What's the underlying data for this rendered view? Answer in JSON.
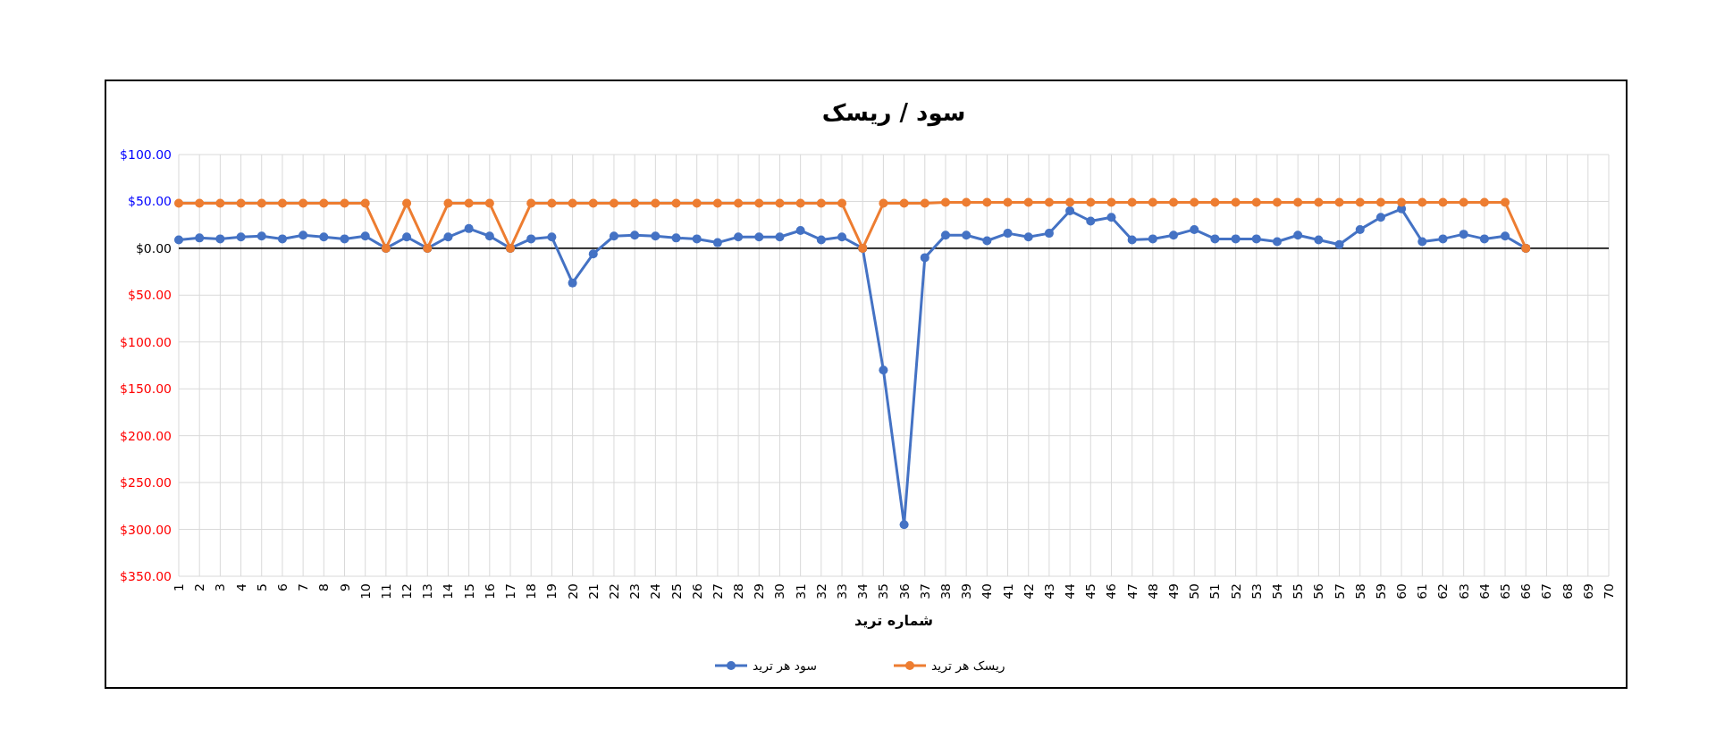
{
  "chart_data": {
    "type": "line",
    "title": "سود / ریسک",
    "xlabel": "شماره ترید",
    "categories": [
      "1",
      "2",
      "3",
      "4",
      "5",
      "6",
      "7",
      "8",
      "9",
      "10",
      "11",
      "12",
      "13",
      "14",
      "15",
      "16",
      "17",
      "18",
      "19",
      "20",
      "21",
      "22",
      "23",
      "24",
      "25",
      "26",
      "27",
      "28",
      "29",
      "30",
      "31",
      "32",
      "33",
      "34",
      "35",
      "36",
      "37",
      "38",
      "39",
      "40",
      "41",
      "42",
      "43",
      "44",
      "45",
      "46",
      "47",
      "48",
      "49",
      "50",
      "51",
      "52",
      "53",
      "54",
      "55",
      "56",
      "57",
      "58",
      "59",
      "60",
      "61",
      "62",
      "63",
      "64",
      "65",
      "66",
      "67",
      "68",
      "69",
      "70"
    ],
    "series": [
      {
        "name": "سود هر ترید",
        "color": "#4472c4",
        "values": [
          9,
          11,
          10,
          12,
          13,
          10,
          14,
          12,
          10,
          13,
          0,
          12,
          0,
          12,
          21,
          13,
          0,
          10,
          12,
          -37,
          -6,
          13,
          14,
          13,
          11,
          10,
          6,
          12,
          12,
          12,
          19,
          9,
          12,
          0,
          -130,
          -295,
          -10,
          14,
          14,
          8,
          16,
          12,
          16,
          40,
          29,
          33,
          9,
          10,
          14,
          20,
          10,
          10,
          10,
          7,
          14,
          9,
          4,
          20,
          33,
          42,
          7,
          10,
          15,
          10,
          13,
          0,
          null,
          null,
          null,
          null
        ]
      },
      {
        "name": "ریسک هر ترید",
        "color": "#ed7d31",
        "values": [
          48,
          48,
          48,
          48,
          48,
          48,
          48,
          48,
          48,
          48,
          0,
          48,
          0,
          48,
          48,
          48,
          0,
          48,
          48,
          48,
          48,
          48,
          48,
          48,
          48,
          48,
          48,
          48,
          48,
          48,
          48,
          48,
          48,
          0,
          48,
          48,
          48,
          49,
          49,
          49,
          49,
          49,
          49,
          49,
          49,
          49,
          49,
          49,
          49,
          49,
          49,
          49,
          49,
          49,
          49,
          49,
          49,
          49,
          49,
          49,
          49,
          49,
          49,
          49,
          49,
          0,
          null,
          null,
          null,
          null
        ]
      }
    ],
    "ylim": [
      -350,
      100
    ],
    "yticks": [
      {
        "value": 100,
        "label": "$100.00"
      },
      {
        "value": 50,
        "label": "$50.00"
      },
      {
        "value": 0,
        "label": "$0.00"
      },
      {
        "value": -50,
        "label": "$50.00"
      },
      {
        "value": -100,
        "label": "$100.00"
      },
      {
        "value": -150,
        "label": "$150.00"
      },
      {
        "value": -200,
        "label": "$200.00"
      },
      {
        "value": -250,
        "label": "$250.00"
      },
      {
        "value": -300,
        "label": "$300.00"
      },
      {
        "value": -350,
        "label": "$350.00"
      }
    ],
    "grid": true,
    "legend": "bottom",
    "marker": "circle",
    "line_style": "solid"
  }
}
